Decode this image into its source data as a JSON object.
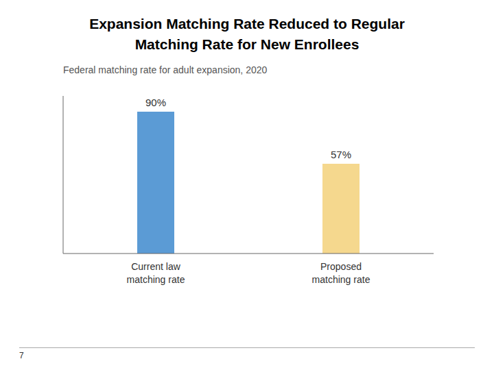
{
  "chart_data": {
    "type": "bar",
    "title": "Expansion Matching Rate Reduced to Regular\nMatching Rate for New Enrollees",
    "subtitle": "Federal matching rate for adult expansion, 2020",
    "categories": [
      "Current law\nmatching rate",
      "Proposed\nmatching rate"
    ],
    "values": [
      90,
      57
    ],
    "value_labels": [
      "90%",
      "57%"
    ],
    "data_labels": true,
    "colors": [
      "#5B9BD5",
      "#F5D88E"
    ],
    "ylim": [
      0,
      100
    ],
    "grid": false,
    "tick_labels": "x",
    "annotations": [
      "7"
    ]
  }
}
